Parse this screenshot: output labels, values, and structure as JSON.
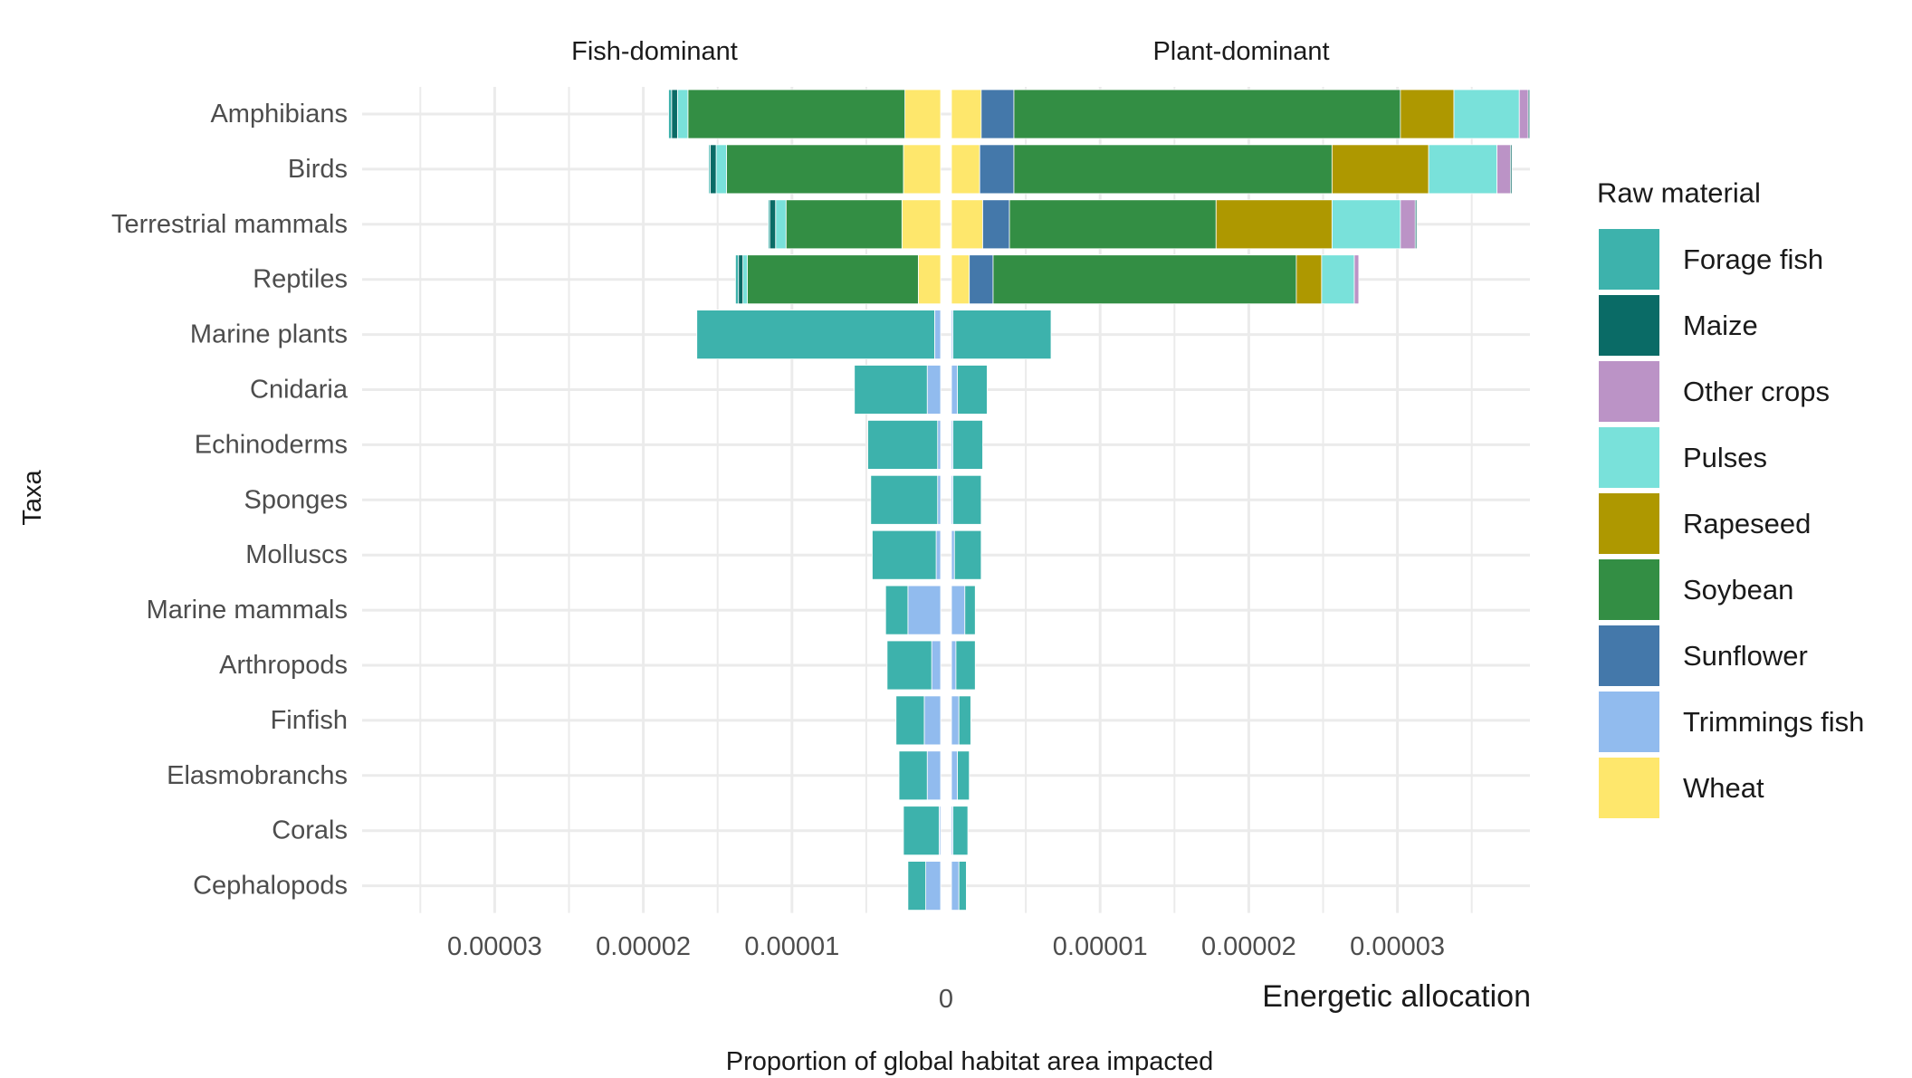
{
  "chart_data": {
    "type": "bar",
    "orientation": "horizontal",
    "stacking": "stacked",
    "xlabel": "Proportion of global habitat area impacted",
    "ylabel": "Taxa",
    "corner_label": "Energetic allocation",
    "zero_label": "0",
    "xlim": [
      -4.15e-05,
      3.92e-05
    ],
    "grid": true,
    "legend_title": "Raw material",
    "legend_position": "right",
    "panels": [
      {
        "name": "Fish-dominant",
        "direction": "left",
        "tick_values": [
          3e-05,
          2e-05,
          1e-05
        ],
        "tick_labels": [
          "0.00003",
          "0.00002",
          "0.00001"
        ]
      },
      {
        "name": "Plant-dominant",
        "direction": "right",
        "tick_values": [
          1e-05,
          2e-05,
          3e-05
        ],
        "tick_labels": [
          "0.00001",
          "0.00002",
          "0.00003"
        ]
      }
    ],
    "categories": [
      "Amphibians",
      "Birds",
      "Terrestrial mammals",
      "Reptiles",
      "Marine plants",
      "Cnidaria",
      "Echinoderms",
      "Sponges",
      "Molluscs",
      "Marine mammals",
      "Arthropods",
      "Finfish",
      "Elasmobranchs",
      "Corals",
      "Cephalopods"
    ],
    "stack_order": [
      "Wheat",
      "Trimmings fish",
      "Sunflower",
      "Soybean",
      "Rapeseed",
      "Pulses",
      "Other crops",
      "Maize",
      "Forage fish"
    ],
    "series": [
      {
        "name": "Forage fish",
        "color": "#3DB2AC",
        "fish": [
          2e-07,
          1e-07,
          1e-07,
          2e-07,
          1.6e-05,
          4.9e-06,
          4.7e-06,
          4.5e-06,
          4.3e-06,
          1.5e-06,
          3e-06,
          1.9e-06,
          1.9e-06,
          2.4e-06,
          1.2e-06
        ],
        "plant": [
          0,
          0,
          0,
          0,
          6.6e-06,
          2e-06,
          2e-06,
          1.9e-06,
          1.8e-06,
          7e-07,
          1.3e-06,
          8e-07,
          8e-07,
          1e-06,
          5e-07
        ]
      },
      {
        "name": "Maize",
        "color": "#0A6B66",
        "fish": [
          4e-07,
          4e-07,
          4e-07,
          3e-07,
          0,
          0,
          0,
          0,
          0,
          0,
          0,
          0,
          0,
          0,
          0
        ],
        "plant": [
          1e-07,
          1e-07,
          1e-07,
          0,
          0,
          0,
          0,
          0,
          0,
          0,
          0,
          0,
          0,
          0,
          0
        ]
      },
      {
        "name": "Other crops",
        "color": "#BB93C6",
        "fish": [
          0,
          0,
          0,
          0,
          0,
          0,
          0,
          0,
          0,
          0,
          0,
          0,
          0,
          0,
          0
        ],
        "plant": [
          6e-07,
          9e-07,
          1e-06,
          3e-07,
          0,
          0,
          0,
          0,
          0,
          0,
          0,
          0,
          0,
          0,
          0
        ]
      },
      {
        "name": "Pulses",
        "color": "#79E1DA",
        "fish": [
          7e-07,
          7e-07,
          7e-07,
          3e-07,
          0,
          0,
          0,
          0,
          0,
          0,
          0,
          0,
          0,
          0,
          0
        ],
        "plant": [
          4.4e-06,
          4.6e-06,
          4.6e-06,
          2.2e-06,
          0,
          0,
          0,
          0,
          0,
          0,
          0,
          0,
          0,
          0,
          0
        ]
      },
      {
        "name": "Rapeseed",
        "color": "#AE9800",
        "fish": [
          0,
          0,
          0,
          0,
          0,
          0,
          0,
          0,
          0,
          0,
          0,
          0,
          0,
          0,
          0
        ],
        "plant": [
          3.6e-06,
          6.5e-06,
          7.8e-06,
          1.7e-06,
          0,
          0,
          0,
          0,
          0,
          0,
          0,
          0,
          0,
          0,
          0
        ]
      },
      {
        "name": "Soybean",
        "color": "#338E44",
        "fish": [
          1.46e-05,
          1.19e-05,
          7.8e-06,
          1.15e-05,
          0,
          0,
          0,
          0,
          0,
          0,
          0,
          0,
          0,
          0,
          0
        ],
        "plant": [
          2.6e-05,
          2.14e-05,
          1.39e-05,
          2.04e-05,
          0,
          0,
          0,
          0,
          0,
          0,
          0,
          0,
          0,
          0,
          0
        ]
      },
      {
        "name": "Sunflower",
        "color": "#4478AA",
        "fish": [
          0,
          0,
          0,
          0,
          0,
          0,
          0,
          0,
          0,
          0,
          0,
          0,
          0,
          0,
          0
        ],
        "plant": [
          2.2e-06,
          2.3e-06,
          1.8e-06,
          1.6e-06,
          0,
          0,
          0,
          0,
          0,
          0,
          0,
          0,
          0,
          0,
          0
        ]
      },
      {
        "name": "Trimmings fish",
        "color": "#91BBEE",
        "fish": [
          0,
          0,
          0,
          0,
          4e-07,
          9e-07,
          2e-07,
          2e-07,
          3e-07,
          2.2e-06,
          6e-07,
          1.1e-06,
          9e-07,
          1e-07,
          1e-06
        ],
        "plant": [
          0,
          0,
          0,
          0,
          1e-07,
          4e-07,
          1e-07,
          1e-07,
          2e-07,
          9e-07,
          3e-07,
          5e-07,
          4e-07,
          1e-07,
          5e-07
        ]
      },
      {
        "name": "Wheat",
        "color": "#FEE76C",
        "fish": [
          2.4e-06,
          2.5e-06,
          2.6e-06,
          1.5e-06,
          0,
          0,
          0,
          0,
          0,
          0,
          0,
          0,
          0,
          0,
          0
        ],
        "plant": [
          2e-06,
          1.9e-06,
          2.1e-06,
          1.2e-06,
          0,
          0,
          0,
          0,
          0,
          0,
          0,
          0,
          0,
          0,
          0
        ]
      }
    ]
  }
}
